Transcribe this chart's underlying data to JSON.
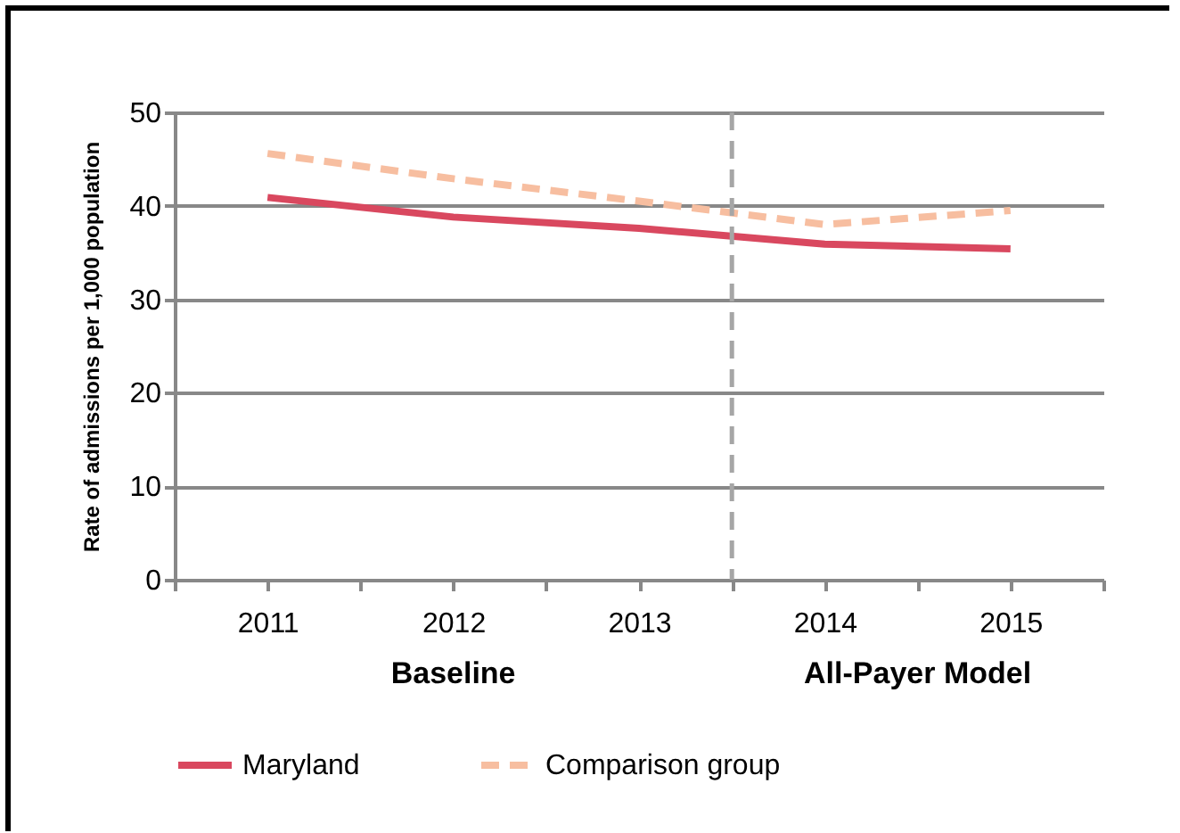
{
  "chart_data": {
    "type": "line",
    "ylabel": "Rate of admissions per 1,000 population",
    "x": [
      2011,
      2012,
      2013,
      2014,
      2015
    ],
    "xlim": [
      2010.5,
      2015.5
    ],
    "xticks": [
      {
        "value": 2010.5,
        "label": null
      },
      2011,
      {
        "value": 2011.5,
        "label": null
      },
      2012,
      {
        "value": 2012.5,
        "label": null
      },
      2013,
      {
        "value": 2013.5,
        "label": null
      },
      2014,
      {
        "value": 2014.5,
        "label": null
      },
      2015,
      {
        "value": 2015.5,
        "label": null
      }
    ],
    "ylim": [
      0,
      50
    ],
    "yticks": [
      0,
      10,
      20,
      30,
      40,
      50
    ],
    "grid": "y",
    "legend": "bottom",
    "series": [
      {
        "name": "Maryland",
        "color": "#d9485f",
        "line_style": "solid",
        "values": [
          40.9,
          38.8,
          37.6,
          35.9,
          35.4
        ]
      },
      {
        "name": "Comparison group",
        "color": "#f7bea0",
        "line_style": "dashed",
        "values": [
          45.6,
          42.9,
          40.5,
          38.0,
          39.5
        ]
      }
    ],
    "ref_lines": [
      {
        "axis": "x",
        "value": 2013.5,
        "color": "#a6a6a6",
        "line_style": "dashed"
      }
    ],
    "annotations": [
      "Baseline",
      "All-Payer Model"
    ]
  }
}
